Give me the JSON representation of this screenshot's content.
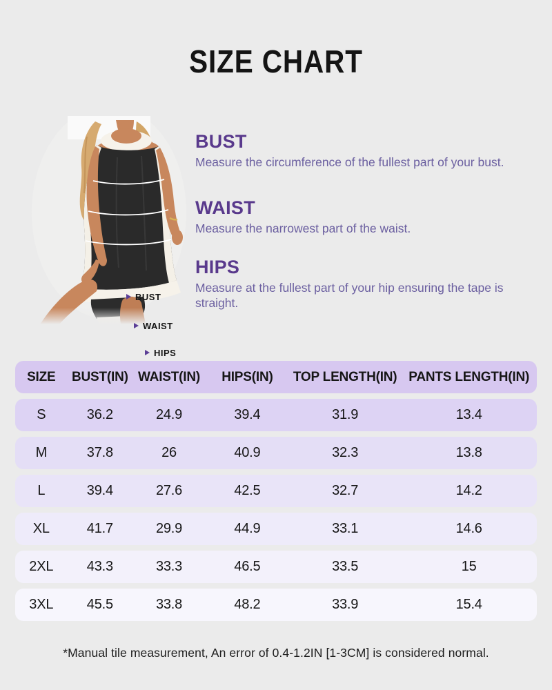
{
  "page": {
    "background": "#ebebeb",
    "title": "SIZE CHART"
  },
  "figure": {
    "arrow_color": "#5b3e96",
    "labels": [
      {
        "label": "BUST"
      },
      {
        "label": "WAIST"
      },
      {
        "label": "HIPS"
      }
    ]
  },
  "guide": {
    "heading_color": "#59398c",
    "body_color": "#6b5fa0",
    "sections": [
      {
        "heading": "BUST",
        "description": "Measure the circumference of the fullest part of your bust."
      },
      {
        "heading": "WAIST",
        "description": "Measure the narrowest part of the waist."
      },
      {
        "heading": "HIPS",
        "description": "Measure at the fullest part of your hip ensuring the tape is straight."
      }
    ]
  },
  "size_table": {
    "header_bg": "#d7c8f0",
    "row_bgs": [
      "#ddd3f4",
      "#e4def6",
      "#e9e4f8",
      "#eeebfa",
      "#f3f1fb",
      "#f7f6fd"
    ],
    "columns": [
      "SIZE",
      "BUST(IN)",
      "WAIST(IN)",
      "HIPS(IN)",
      "TOP LENGTH(IN)",
      "PANTS LENGTH(IN)"
    ],
    "rows": [
      {
        "size": "S",
        "values": [
          "36.2",
          "24.9",
          "39.4",
          "31.9",
          "13.4"
        ]
      },
      {
        "size": "M",
        "values": [
          "37.8",
          "26",
          "40.9",
          "32.3",
          "13.8"
        ]
      },
      {
        "size": "L",
        "values": [
          "39.4",
          "27.6",
          "42.5",
          "32.7",
          "14.2"
        ]
      },
      {
        "size": "XL",
        "values": [
          "41.7",
          "29.9",
          "44.9",
          "33.1",
          "14.6"
        ]
      },
      {
        "size": "2XL",
        "values": [
          "43.3",
          "33.3",
          "46.5",
          "33.5",
          "15"
        ]
      },
      {
        "size": "3XL",
        "values": [
          "45.5",
          "33.8",
          "48.2",
          "33.9",
          "15.4"
        ]
      }
    ]
  },
  "footnote": "*Manual tile measurement, An error of 0.4-1.2IN [1-3CM] is considered normal."
}
